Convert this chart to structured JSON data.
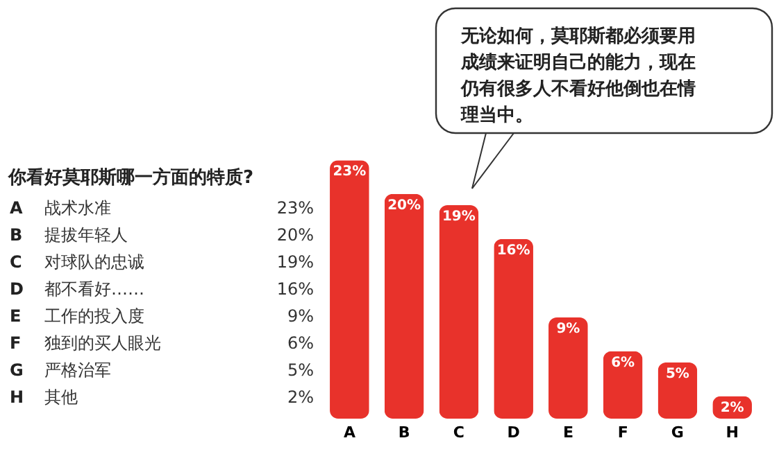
{
  "chart_data": {
    "type": "bar",
    "title": "你看好莫耶斯哪一方面的特质?",
    "categories": [
      "A",
      "B",
      "C",
      "D",
      "E",
      "F",
      "G",
      "H"
    ],
    "values": [
      23,
      20,
      19,
      16,
      9,
      6,
      5,
      2
    ],
    "value_labels": [
      "23%",
      "20%",
      "19%",
      "16%",
      "9%",
      "6%",
      "5%",
      "2%"
    ],
    "color": "#e8322b",
    "annotations": [
      "战术水准",
      "提拔年轻人",
      "对球队的忠诚",
      "都不看好……",
      "工作的投入度",
      "独到的买人眼光",
      "严格治军",
      "其他",
      "无论如何，莫耶斯都必须要用成绩来证明自己的能力，现在仍有很多人不看好他倒也在情理当中。"
    ],
    "tick_labels": "x"
  }
}
